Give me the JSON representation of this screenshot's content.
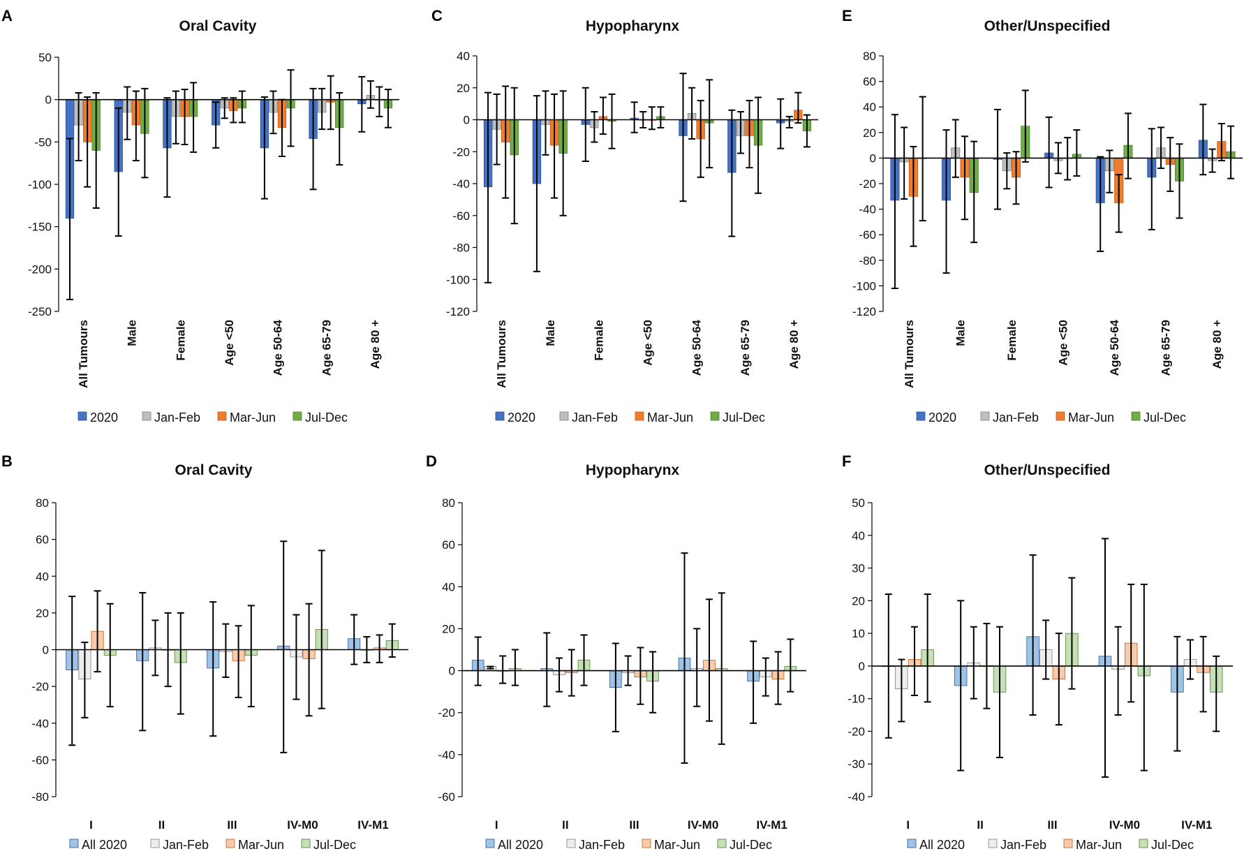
{
  "figure": {
    "panels": [
      "A",
      "B",
      "C",
      "D",
      "E",
      "F"
    ]
  },
  "colors": {
    "top": [
      "#4472C4",
      "#BFBFBF",
      "#ED7D31",
      "#70AD47"
    ],
    "bottom": [
      "#9DC3E6",
      "#EDEDED",
      "#F8CBAD",
      "#C5E0B4"
    ],
    "stroke_top": [
      "#2F5597",
      "#7F7F7F",
      "#C55A11",
      "#507E32"
    ],
    "stroke_bottom": [
      "#2F5597",
      "#7F7F7F",
      "#C55A11",
      "#507E32"
    ],
    "axis": "#000000",
    "errorbar": "#000000"
  },
  "chart_data": [
    {
      "panel": "A",
      "type": "bar",
      "title": "Oral Cavity",
      "style": "top",
      "categories": [
        "All Tumours",
        "Male",
        "Female",
        "Age <50",
        "Age 50-64",
        "Age 65-79",
        "Age 80 +"
      ],
      "ylim": [
        -250,
        50
      ],
      "ticks": [
        50,
        0,
        -50,
        -100,
        -150,
        -200,
        -250
      ],
      "legend": [
        "2020",
        "Jan-Feb",
        "Mar-Jun",
        "Jul-Dec"
      ],
      "series": [
        {
          "name": "2020",
          "values": [
            -140,
            -85,
            -57,
            -30,
            -57,
            -46,
            -5
          ],
          "lo": [
            -236,
            -161,
            -115,
            -57,
            -117,
            -106,
            -38
          ],
          "hi": [
            -46,
            -10,
            2,
            -3,
            3,
            13,
            27
          ]
        },
        {
          "name": "Jan-Feb",
          "values": [
            -30,
            -15,
            -20,
            -10,
            -15,
            -15,
            5
          ],
          "lo": [
            -72,
            -47,
            -52,
            -22,
            -40,
            -35,
            -10
          ],
          "hi": [
            8,
            15,
            10,
            2,
            10,
            13,
            22
          ]
        },
        {
          "name": "Mar-Jun",
          "values": [
            -50,
            -30,
            -20,
            -13,
            -33,
            -3,
            0
          ],
          "lo": [
            -103,
            -72,
            -53,
            -27,
            -67,
            -35,
            -20
          ],
          "hi": [
            3,
            10,
            12,
            2,
            0,
            28,
            15
          ]
        },
        {
          "name": "Jul-Dec",
          "values": [
            -60,
            -40,
            -20,
            -10,
            -10,
            -33,
            -10
          ],
          "lo": [
            -128,
            -92,
            -62,
            -27,
            -55,
            -77,
            -33
          ],
          "hi": [
            8,
            13,
            20,
            10,
            35,
            8,
            12
          ]
        }
      ]
    },
    {
      "panel": "C",
      "type": "bar",
      "title": "Hypopharynx",
      "style": "top",
      "categories": [
        "All Tumours",
        "Male",
        "Female",
        "Age <50",
        "Age 50-64",
        "Age 65-79",
        "Age 80 +"
      ],
      "ylim": [
        -120,
        40
      ],
      "ticks": [
        40,
        20,
        0,
        -20,
        -40,
        -60,
        -80,
        -100,
        -120
      ],
      "legend": [
        "2020",
        "Jan-Feb",
        "Mar-Jun",
        "Jul-Dec"
      ],
      "series": [
        {
          "name": "2020",
          "values": [
            -42,
            -40,
            -3,
            1,
            -10,
            -33,
            -2
          ],
          "lo": [
            -102,
            -95,
            -26,
            -8,
            -51,
            -73,
            -18
          ],
          "hi": [
            17,
            15,
            20,
            11,
            29,
            6,
            13
          ]
        },
        {
          "name": "Jan-Feb",
          "values": [
            -6,
            -3,
            -5,
            0,
            4,
            -10,
            -1
          ],
          "lo": [
            -28,
            -22,
            -14,
            -5,
            -12,
            -21,
            -5
          ],
          "hi": [
            16,
            18,
            5,
            5,
            20,
            5,
            2
          ]
        },
        {
          "name": "Mar-Jun",
          "values": [
            -14,
            -16,
            2,
            0,
            -12,
            -10,
            6
          ],
          "lo": [
            -49,
            -49,
            -9,
            -6,
            -36,
            -30,
            -2
          ],
          "hi": [
            21,
            16,
            14,
            8,
            12,
            12,
            17
          ]
        },
        {
          "name": "Jul-Dec",
          "values": [
            -22,
            -21,
            -1,
            2,
            -2,
            -16,
            -7
          ],
          "lo": [
            -65,
            -60,
            -18,
            -5,
            -30,
            -46,
            -17
          ],
          "hi": [
            20,
            18,
            16,
            8,
            25,
            14,
            3
          ]
        }
      ]
    },
    {
      "panel": "E",
      "type": "bar",
      "title": "Other/Unspecified",
      "style": "top",
      "categories": [
        "All Tumours",
        "Male",
        "Female",
        "Age <50",
        "Age 50-64",
        "Age 65-79",
        "Age 80 +"
      ],
      "ylim": [
        -120,
        80
      ],
      "ticks": [
        80,
        60,
        40,
        20,
        0,
        -20,
        -40,
        -60,
        -80,
        -100,
        -120
      ],
      "legend": [
        "2020",
        "Jan-Feb",
        "Mar-Jun",
        "Jul-Dec"
      ],
      "series": [
        {
          "name": "2020",
          "values": [
            -33,
            -33,
            -1,
            4,
            -35,
            -15,
            14
          ],
          "lo": [
            -102,
            -90,
            -40,
            -23,
            -73,
            -56,
            -13
          ],
          "hi": [
            34,
            22,
            38,
            32,
            1,
            23,
            42
          ]
        },
        {
          "name": "Jan-Feb",
          "values": [
            -3,
            8,
            -10,
            -2,
            -10,
            8,
            -2
          ],
          "lo": [
            -32,
            -15,
            -24,
            -12,
            -27,
            -8,
            -11
          ],
          "hi": [
            24,
            30,
            4,
            12,
            6,
            24,
            7
          ]
        },
        {
          "name": "Mar-Jun",
          "values": [
            -30,
            -15,
            -15,
            0,
            -35,
            -5,
            13
          ],
          "lo": [
            -69,
            -48,
            -36,
            -17,
            -58,
            -26,
            -2
          ],
          "hi": [
            9,
            17,
            5,
            16,
            -13,
            16,
            27
          ]
        },
        {
          "name": "Jul-Dec",
          "values": [
            0,
            -27,
            25,
            3,
            10,
            -18,
            5
          ],
          "lo": [
            -49,
            -66,
            -3,
            -14,
            -16,
            -47,
            -16
          ],
          "hi": [
            48,
            13,
            53,
            22,
            35,
            11,
            25
          ]
        }
      ]
    },
    {
      "panel": "B",
      "type": "bar",
      "title": "Oral Cavity",
      "style": "bottom",
      "categories": [
        "I",
        "II",
        "III",
        "IV-M0",
        "IV-M1"
      ],
      "ylim": [
        -80,
        80
      ],
      "ticks": [
        80,
        60,
        40,
        20,
        0,
        -20,
        -40,
        -60,
        -80
      ],
      "legend": [
        "All 2020",
        "Jan-Feb",
        "Mar-Jun",
        "Jul-Dec"
      ],
      "series": [
        {
          "name": "All 2020",
          "values": [
            -11,
            -6,
            -10,
            2,
            6
          ],
          "lo": [
            -52,
            -44,
            -47,
            -56,
            -8
          ],
          "hi": [
            29,
            31,
            26,
            59,
            19
          ]
        },
        {
          "name": "Jan-Feb",
          "values": [
            -16,
            1,
            -1,
            -4,
            0
          ],
          "lo": [
            -37,
            -14,
            -15,
            -27,
            -7
          ],
          "hi": [
            4,
            16,
            14,
            19,
            7
          ]
        },
        {
          "name": "Mar-Jun",
          "values": [
            10,
            0,
            -6,
            -5,
            1
          ],
          "lo": [
            -12,
            -20,
            -26,
            -36,
            -7
          ],
          "hi": [
            32,
            20,
            13,
            25,
            8
          ]
        },
        {
          "name": "Jul-Dec",
          "values": [
            -3,
            -7,
            -3,
            11,
            5
          ],
          "lo": [
            -31,
            -35,
            -31,
            -32,
            -4
          ],
          "hi": [
            25,
            20,
            24,
            54,
            14
          ]
        }
      ]
    },
    {
      "panel": "D",
      "type": "bar",
      "title": "Hypopharynx",
      "style": "bottom",
      "categories": [
        "I",
        "II",
        "III",
        "IV-M0",
        "IV-M1"
      ],
      "ylim": [
        -60,
        80
      ],
      "ticks": [
        80,
        60,
        40,
        20,
        0,
        -20,
        -40,
        -60
      ],
      "legend": [
        "All 2020",
        "Jan-Feb",
        "Mar-Jun",
        "Jul-Dec"
      ],
      "series": [
        {
          "name": "All 2020",
          "values": [
            5,
            1,
            -8,
            6,
            -5
          ],
          "lo": [
            -7,
            -17,
            -29,
            -44,
            -25
          ],
          "hi": [
            16,
            18,
            13,
            56,
            14
          ]
        },
        {
          "name": "Jan-Feb",
          "values": [
            2,
            -2,
            -1,
            1,
            -3
          ],
          "lo": [
            1,
            -10,
            -7,
            -17,
            -12
          ],
          "hi": [
            2,
            6,
            7,
            20,
            6
          ]
        },
        {
          "name": "Mar-Jun",
          "values": [
            0,
            -1,
            -3,
            5,
            -4
          ],
          "lo": [
            -6,
            -12,
            -16,
            -24,
            -16
          ],
          "hi": [
            7,
            10,
            11,
            34,
            9
          ]
        },
        {
          "name": "Jul-Dec",
          "values": [
            1,
            5,
            -5,
            1,
            2
          ],
          "lo": [
            -7,
            -7,
            -20,
            -35,
            -10
          ],
          "hi": [
            10,
            17,
            9,
            37,
            15
          ]
        }
      ]
    },
    {
      "panel": "F",
      "type": "bar",
      "title": "Other/Unspecified",
      "style": "bottom",
      "categories": [
        "I",
        "II",
        "III",
        "IV-M0",
        "IV-M1"
      ],
      "ylim": [
        -40,
        50
      ],
      "ticks": [
        50,
        40,
        30,
        20,
        10,
        0,
        -10,
        -20,
        -30,
        -40
      ],
      "legend": [
        "All 2020",
        "Jan-Feb",
        "Mar-Jun",
        "Jul-Dec"
      ],
      "series": [
        {
          "name": "All 2020",
          "values": [
            0,
            -6,
            9,
            3,
            -8
          ],
          "lo": [
            -22,
            -32,
            -15,
            -34,
            -26
          ],
          "hi": [
            22,
            20,
            34,
            39,
            9
          ]
        },
        {
          "name": "Jan-Feb",
          "values": [
            -7,
            1,
            5,
            -1,
            2
          ],
          "lo": [
            -17,
            -10,
            -4,
            -15,
            -4
          ],
          "hi": [
            2,
            12,
            14,
            12,
            8
          ]
        },
        {
          "name": "Mar-Jun",
          "values": [
            2,
            0,
            -4,
            7,
            -2
          ],
          "lo": [
            -9,
            -13,
            -18,
            -11,
            -14
          ],
          "hi": [
            12,
            13,
            10,
            25,
            9
          ]
        },
        {
          "name": "Jul-Dec",
          "values": [
            5,
            -8,
            10,
            -3,
            -8
          ],
          "lo": [
            -11,
            -28,
            -7,
            -32,
            -20
          ],
          "hi": [
            22,
            12,
            27,
            25,
            3
          ]
        }
      ]
    }
  ]
}
